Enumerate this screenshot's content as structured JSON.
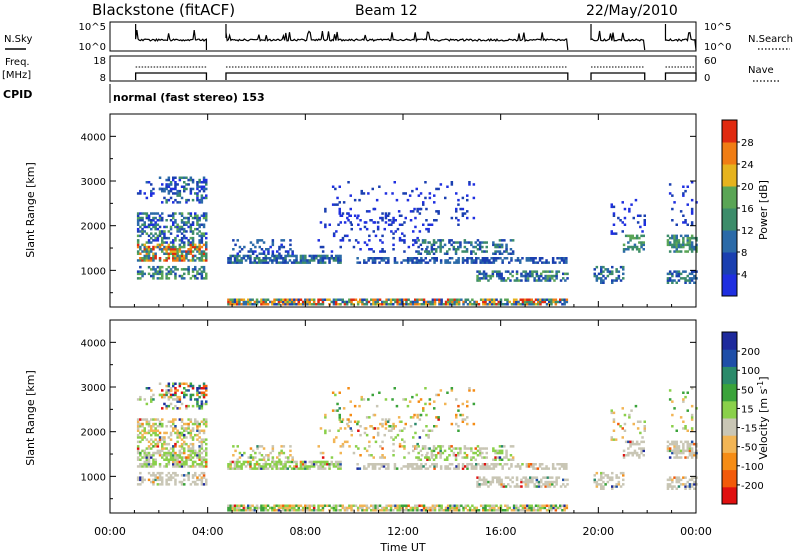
{
  "header": {
    "station": "Blackstone (fitACF)",
    "beam": "Beam 12",
    "date": "22/May/2010"
  },
  "summary": {
    "nsky_label": "N.Sky",
    "nsearch_label": "N.Search",
    "freq_label_line1": "Freq.",
    "freq_label_line2": "[MHz]",
    "nave_label": "Nave",
    "cpid_label": "CPID",
    "cpid_text": "normal (fast stereo) 153",
    "noise_ticks_left": [
      "10^5",
      "10^0"
    ],
    "noise_ticks_right": [
      "10^5",
      "10^0"
    ],
    "freq_ticks": [
      "18",
      "8"
    ],
    "nave_ticks": [
      "60",
      "0"
    ]
  },
  "colors": {
    "power": [
      "#1f2fe0",
      "#1a3fb0",
      "#2b6aa8",
      "#3c8c6a",
      "#5aa555",
      "#e6b31e",
      "#f07d14",
      "#e02a10"
    ],
    "velocity": [
      "#e01010",
      "#f25a0a",
      "#f58c15",
      "#f2b555",
      "#c9c6b5",
      "#8ad04a",
      "#3aa33a",
      "#2a8a6a",
      "#1e4ea8",
      "#1e2a9c"
    ]
  },
  "chart_data": [
    {
      "type": "heatmap",
      "panel": "power",
      "ylabel": "Slant Range [km]",
      "yticks": [
        "4000",
        "3000",
        "2000",
        "1000"
      ],
      "ylim": [
        180,
        4500
      ],
      "xlim": [
        0,
        24
      ],
      "colorbar_label": "Power [dB]",
      "colorbar_ticks": [
        "28",
        "24",
        "20",
        "16",
        "12",
        "8",
        "4"
      ],
      "colorbar_range": [
        0,
        32
      ]
    },
    {
      "type": "heatmap",
      "panel": "velocity",
      "ylabel": "Slant Range [km]",
      "yticks": [
        "4000",
        "3000",
        "2000",
        "1000"
      ],
      "ylim": [
        180,
        4500
      ],
      "xlim": [
        0,
        24
      ],
      "xlabel": "Time UT",
      "xticks": [
        "00:00",
        "04:00",
        "08:00",
        "12:00",
        "16:00",
        "20:00",
        "00:00"
      ],
      "colorbar_label": "Velocity [m s^-1]",
      "colorbar_ticks": [
        "200",
        "100",
        "50",
        "15",
        "-15",
        "-50",
        "-100",
        "-200"
      ]
    }
  ]
}
